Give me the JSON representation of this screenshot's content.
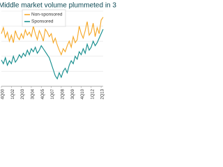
{
  "chart_data": {
    "type": "line",
    "title": "Middle market volume plummeted in 3",
    "categories": [
      "4Q00",
      null,
      null,
      null,
      null,
      "1Q02",
      null,
      null,
      null,
      null,
      "2Q03",
      null,
      null,
      null,
      null,
      "3Q04",
      null,
      null,
      null,
      null,
      "4Q05",
      null,
      null,
      null,
      null,
      "1Q07",
      null,
      null,
      null,
      null,
      "2Q08",
      null,
      null,
      null,
      null,
      "3Q09",
      null,
      null,
      null,
      null,
      "4Q10",
      null,
      null,
      null,
      null,
      "1Q12",
      null,
      null,
      null,
      null,
      "2Q13",
      null
    ],
    "series": [
      {
        "name": "Non-sponsored",
        "color": "#f5a623",
        "values": [
          70,
          78,
          65,
          72,
          60,
          68,
          58,
          74,
          66,
          62,
          70,
          64,
          75,
          68,
          72,
          66,
          80,
          70,
          62,
          74,
          68,
          60,
          76,
          72,
          66,
          70,
          58,
          64,
          55,
          48,
          42,
          50,
          46,
          54,
          60,
          52,
          66,
          58,
          62,
          80,
          70,
          64,
          74,
          86,
          68,
          72,
          84,
          66,
          78,
          70,
          88,
          92
        ]
      },
      {
        "name": "Sponsored",
        "color": "#0f8a8a",
        "values": [
          35,
          30,
          38,
          28,
          34,
          30,
          40,
          32,
          36,
          42,
          38,
          44,
          40,
          48,
          42,
          50,
          46,
          52,
          44,
          48,
          54,
          50,
          46,
          42,
          38,
          30,
          22,
          14,
          10,
          18,
          12,
          20,
          24,
          18,
          28,
          34,
          30,
          40,
          36,
          46,
          42,
          50,
          44,
          56,
          48,
          52,
          60,
          54,
          58,
          64,
          70,
          76
        ]
      }
    ],
    "ylim": [
      0,
      100
    ],
    "grid": true,
    "legend": "upper left"
  }
}
